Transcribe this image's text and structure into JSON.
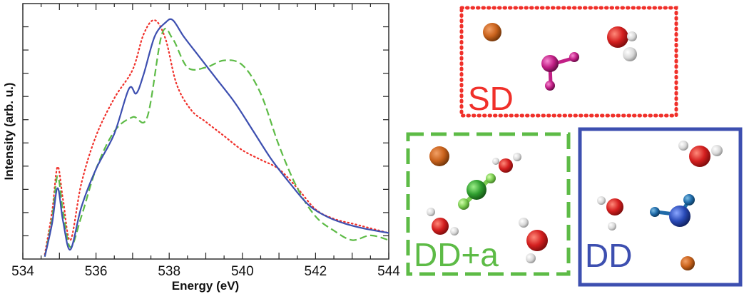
{
  "colors": {
    "SD": "#f0302a",
    "DD+a": "#5dbb46",
    "DD": "#3d4fb0",
    "oxygen": "#d41f1f",
    "hydrogen": "#dcdcdc",
    "chloride": "#2f9e2f",
    "chloride_h": "#7ccd52",
    "cation": "#c9621c",
    "sd_ion": "#c21f86",
    "sd_ion_h": "#d63ca8",
    "dd_ion": "#2a4bb8",
    "dd_ion_h": "#1f6aa8"
  },
  "chart_data": {
    "type": "line",
    "xlabel": "Energy (eV)",
    "ylabel": "Intensity (arb. u.)",
    "xlim": [
      534,
      544
    ],
    "ylim": [
      0,
      1.08
    ],
    "x_ticks": [
      "534",
      "536",
      "538",
      "540",
      "542",
      "544"
    ],
    "y_tick_labels": false,
    "grid": false,
    "legend": "none",
    "series": [
      {
        "key": "SD",
        "style": "dotted",
        "x": [
          534.6,
          534.8,
          534.95,
          535.1,
          535.3,
          535.6,
          536.0,
          536.5,
          537.0,
          537.3,
          537.6,
          537.9,
          538.2,
          538.6,
          539.0,
          539.5,
          540.0,
          540.5,
          541.0,
          541.5,
          542.0,
          542.5,
          543.0,
          543.5,
          544.0
        ],
        "y": [
          0.02,
          0.2,
          0.39,
          0.25,
          0.08,
          0.32,
          0.52,
          0.68,
          0.8,
          0.95,
          1.01,
          0.93,
          0.74,
          0.63,
          0.58,
          0.52,
          0.46,
          0.42,
          0.38,
          0.3,
          0.21,
          0.17,
          0.15,
          0.13,
          0.11
        ]
      },
      {
        "key": "DD+a",
        "style": "dashed",
        "x": [
          534.6,
          534.8,
          534.95,
          535.1,
          535.3,
          535.6,
          536.0,
          536.5,
          537.0,
          537.4,
          537.8,
          538.1,
          538.5,
          539.0,
          539.5,
          540.0,
          540.5,
          541.0,
          541.5,
          542.0,
          542.5,
          543.0,
          543.5,
          544.0
        ],
        "y": [
          0.01,
          0.17,
          0.35,
          0.2,
          0.05,
          0.18,
          0.38,
          0.54,
          0.6,
          0.6,
          0.95,
          0.93,
          0.81,
          0.81,
          0.84,
          0.82,
          0.7,
          0.48,
          0.3,
          0.18,
          0.12,
          0.08,
          0.1,
          0.08
        ]
      },
      {
        "key": "DD",
        "style": "solid",
        "x": [
          534.6,
          534.8,
          534.95,
          535.1,
          535.3,
          535.6,
          536.0,
          536.5,
          536.9,
          537.1,
          537.3,
          537.6,
          537.9,
          538.1,
          538.4,
          538.8,
          539.3,
          539.8,
          540.3,
          540.8,
          541.3,
          541.8,
          542.3,
          542.8,
          543.3,
          544.0
        ],
        "y": [
          0.01,
          0.15,
          0.3,
          0.16,
          0.04,
          0.22,
          0.38,
          0.53,
          0.72,
          0.7,
          0.78,
          0.94,
          1.0,
          1.01,
          0.94,
          0.86,
          0.76,
          0.66,
          0.54,
          0.42,
          0.32,
          0.23,
          0.18,
          0.15,
          0.13,
          0.11
        ]
      }
    ]
  },
  "panels": {
    "sd": {
      "label": "SD"
    },
    "dda": {
      "label": "DD+a"
    },
    "dd": {
      "label": "DD"
    }
  }
}
